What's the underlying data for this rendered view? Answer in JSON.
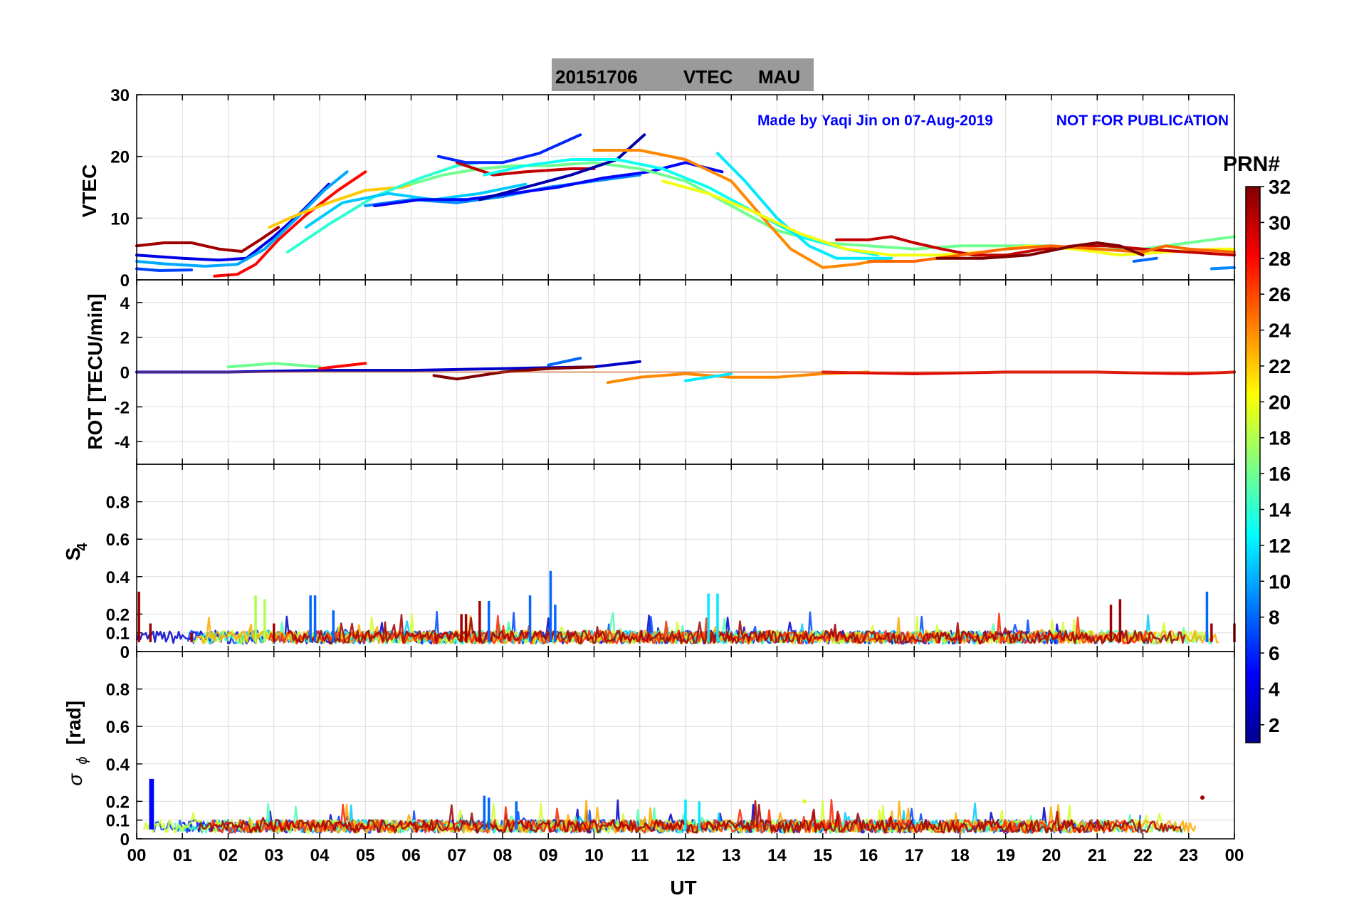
{
  "title": {
    "date": "20151706",
    "param": "VTEC",
    "station": "MAU"
  },
  "credit": "Made by Yaqi Jin on 07-Aug-2019",
  "notice": "NOT FOR PUBLICATION",
  "colors": {
    "title_bg": "#9a9a9a",
    "credit": "#0000ff",
    "grid": "#dcdcdc",
    "axis": "#000000"
  },
  "colorbar": {
    "label": "PRN#",
    "range": [
      1,
      32
    ],
    "ticks": [
      "2",
      "4",
      "6",
      "8",
      "10",
      "12",
      "14",
      "16",
      "18",
      "20",
      "22",
      "24",
      "26",
      "28",
      "30",
      "32"
    ]
  },
  "chart_data": {
    "type": "line",
    "x_label": "UT",
    "x_range": [
      0,
      24
    ],
    "x_ticks": [
      "00",
      "01",
      "02",
      "03",
      "04",
      "05",
      "06",
      "07",
      "08",
      "09",
      "10",
      "11",
      "12",
      "13",
      "14",
      "15",
      "16",
      "17",
      "18",
      "19",
      "20",
      "21",
      "22",
      "23",
      "00"
    ],
    "panels": [
      {
        "id": "vtec",
        "ylabel": "VTEC",
        "ylim": [
          0,
          30
        ],
        "yticks": [
          "0",
          "10",
          "20",
          "30"
        ],
        "series": [
          {
            "prn": 31,
            "x": [
              0,
              0.6,
              1.2,
              1.8,
              2.3,
              2.7,
              3.1
            ],
            "y": [
              5.5,
              6,
              6,
              5,
              4.6,
              6.5,
              8.5
            ]
          },
          {
            "prn": 4,
            "x": [
              0,
              1,
              1.8,
              2.4,
              3,
              3.6,
              4.2
            ],
            "y": [
              4,
              3.5,
              3.2,
              3.5,
              7,
              11,
              15.5
            ]
          },
          {
            "prn": 10,
            "x": [
              0,
              0.6,
              1.5,
              2.2,
              2.8,
              3.5,
              4.1,
              4.6
            ],
            "y": [
              3,
              2.6,
              2.2,
              2.5,
              5,
              10,
              14.5,
              17.5
            ]
          },
          {
            "prn": 28,
            "x": [
              1.7,
              2.2,
              2.6,
              3.1,
              3.7,
              4.4,
              5
            ],
            "y": [
              0.6,
              0.9,
              2.5,
              6.5,
              10.5,
              14.5,
              17.5
            ]
          },
          {
            "prn": 7,
            "x": [
              0,
              0.5,
              1.2
            ],
            "y": [
              1.8,
              1.5,
              1.6
            ]
          },
          {
            "prn": 22,
            "x": [
              2.9,
              3.5,
              4.2,
              5,
              5.8,
              6
            ],
            "y": [
              8.5,
              10.5,
              12.5,
              14.5,
              15,
              15.5
            ]
          },
          {
            "prn": 14,
            "x": [
              3.3,
              4.2,
              5.2,
              6.2,
              7,
              7.5
            ],
            "y": [
              4.5,
              9,
              13.5,
              16.5,
              18.5,
              19
            ]
          },
          {
            "prn": 11,
            "x": [
              3.7,
              4.5,
              5.5,
              6.5,
              7.5,
              8.5
            ],
            "y": [
              8.5,
              12.5,
              14,
              13,
              14,
              15.5
            ]
          },
          {
            "prn": 9,
            "x": [
              5,
              6,
              7,
              8,
              9,
              10,
              11
            ],
            "y": [
              12,
              13,
              12.5,
              13.5,
              15,
              16,
              17
            ]
          },
          {
            "prn": 5,
            "x": [
              5.2,
              6.2,
              7.2,
              8.2,
              9.2,
              10.2,
              11.2,
              12,
              12.8
            ],
            "y": [
              12,
              13,
              13,
              14,
              15,
              16.5,
              17.5,
              19,
              17.5
            ]
          },
          {
            "prn": 16,
            "x": [
              6,
              6.7,
              7.5,
              8.3,
              9,
              10,
              11,
              12,
              13,
              14,
              15,
              16,
              17,
              18,
              19,
              20,
              21,
              22,
              23,
              24
            ],
            "y": [
              15.5,
              17,
              18,
              18.5,
              18.5,
              19,
              18,
              16,
              12,
              8,
              6,
              5.5,
              5,
              5.5,
              5.5,
              5.5,
              5,
              5,
              6,
              7
            ]
          },
          {
            "prn": 30,
            "x": [
              7,
              7.8,
              8.5,
              9.5,
              10
            ],
            "y": [
              19,
              17,
              17.5,
              18,
              18
            ]
          },
          {
            "prn": 6,
            "x": [
              6.6,
              7.2,
              8,
              8.8,
              9.7
            ],
            "y": [
              20,
              19,
              19,
              20.5,
              23.5
            ]
          },
          {
            "prn": 2,
            "x": [
              7.5,
              8.5,
              9.5,
              10.5,
              11.1
            ],
            "y": [
              13,
              15,
              17,
              19.5,
              23.5
            ]
          },
          {
            "prn": 13,
            "x": [
              7.6,
              8.5,
              9.5,
              10.5,
              11.5,
              12.5,
              13.5,
              14.5,
              15.5,
              16.2
            ],
            "y": [
              17,
              18.5,
              19.5,
              19.5,
              18,
              15,
              11,
              7,
              5,
              4
            ]
          },
          {
            "prn": 24,
            "x": [
              10,
              11,
              12,
              13,
              13.7,
              14.3,
              15,
              15.7,
              16.5
            ],
            "y": [
              21,
              21,
              19.5,
              16,
              10,
              5,
              2,
              2.5,
              3.5
            ]
          },
          {
            "prn": 12,
            "x": [
              12.7,
              13.3,
              14,
              14.7,
              15.3,
              16,
              16.5
            ],
            "y": [
              20.5,
              16,
              10,
              5.5,
              3.5,
              3.5,
              3.5
            ]
          },
          {
            "prn": 20,
            "x": [
              11.5,
              12.5,
              13.5,
              14.5,
              15.5,
              16.5,
              17.5,
              18.5,
              19.5,
              20.5,
              21.5,
              22.5,
              23.5,
              24
            ],
            "y": [
              16,
              14,
              11,
              7.5,
              5,
              4,
              4,
              4.5,
              5.5,
              5,
              4,
              4.5,
              5,
              5
            ]
          },
          {
            "prn": 30,
            "x": [
              15.3,
              16,
              16.5,
              17,
              17.6,
              18.3,
              19,
              19.8,
              20.5,
              21.2,
              22,
              23,
              24
            ],
            "y": [
              6.5,
              6.5,
              7,
              6,
              5,
              4,
              4,
              5,
              5.5,
              5.5,
              5,
              4.5,
              4
            ]
          },
          {
            "prn": 25,
            "x": [
              16,
              17,
              18,
              19,
              20,
              21,
              22,
              22.5,
              23,
              24
            ],
            "y": [
              3,
              3,
              4,
              5,
              5.5,
              5,
              4.5,
              5.5,
              5,
              4.5
            ]
          },
          {
            "prn": 32,
            "x": [
              17.5,
              18.5,
              19.5,
              20.5,
              21,
              21.5,
              22
            ],
            "y": [
              3.5,
              3.5,
              4,
              5.5,
              6,
              5.5,
              4
            ]
          },
          {
            "prn": 8,
            "x": [
              21.8,
              22.3
            ],
            "y": [
              3,
              3.5
            ]
          },
          {
            "prn": 9,
            "x": [
              23.5,
              24
            ],
            "y": [
              1.8,
              2
            ]
          }
        ]
      },
      {
        "id": "rot",
        "ylabel": "ROT [TECU/min]",
        "ylim": [
          -5.3,
          5.3
        ],
        "yticks": [
          "-4",
          "-2",
          "0",
          "2",
          "4"
        ],
        "series": [
          {
            "prn": 3,
            "x": [
              0,
              2,
              4,
              6,
              8,
              10,
              11
            ],
            "y": [
              0,
              0,
              0.1,
              0.1,
              0.2,
              0.3,
              0.6
            ]
          },
          {
            "prn": 8,
            "x": [
              9,
              9.7
            ],
            "y": [
              0.4,
              0.8
            ]
          },
          {
            "prn": 16,
            "x": [
              2,
              3,
              4
            ],
            "y": [
              0.3,
              0.5,
              0.3
            ]
          },
          {
            "prn": 28,
            "x": [
              4,
              5
            ],
            "y": [
              0.2,
              0.5
            ]
          },
          {
            "prn": 32,
            "x": [
              6.5,
              7,
              8,
              9,
              10
            ],
            "y": [
              -0.2,
              -0.4,
              0,
              0.2,
              0.3
            ]
          },
          {
            "prn": 24,
            "x": [
              10.3,
              11,
              12,
              13,
              14,
              15,
              16
            ],
            "y": [
              -0.6,
              -0.3,
              -0.1,
              -0.3,
              -0.3,
              -0.1,
              0
            ]
          },
          {
            "prn": 12,
            "x": [
              12,
              12.5,
              13
            ],
            "y": [
              -0.5,
              -0.3,
              -0.1
            ]
          },
          {
            "prn": 29,
            "x": [
              15,
              17,
              19,
              21,
              23,
              24
            ],
            "y": [
              0,
              -0.1,
              0,
              0,
              -0.1,
              0
            ]
          }
        ]
      },
      {
        "id": "s4",
        "ylabel": "S4",
        "ylim": [
          0,
          1
        ],
        "yticks": [
          "0",
          "0.1",
          "0.2",
          "0.4",
          "0.6",
          "0.8"
        ],
        "series": [
          {
            "prn": 31,
            "x": [
              0.05,
              0.3,
              1.2,
              2.6,
              3,
              7.1,
              7.2,
              7.5,
              21.3,
              21.5,
              23.5,
              24
            ],
            "y": [
              0.32,
              0.15,
              0.1,
              0.12,
              0.15,
              0.2,
              0.2,
              0.27,
              0.25,
              0.28,
              0.15,
              0.15
            ]
          },
          {
            "prn": 8,
            "x": [
              3.8,
              3.9,
              4.3,
              7.7,
              8.6,
              9.05,
              9.15,
              23.4
            ],
            "y": [
              0.3,
              0.3,
              0.22,
              0.27,
              0.3,
              0.43,
              0.25,
              0.32
            ]
          },
          {
            "prn": 12,
            "x": [
              12.5,
              12.7
            ],
            "y": [
              0.31,
              0.31
            ]
          },
          {
            "prn": 18,
            "x": [
              2.6,
              2.8
            ],
            "y": [
              0.3,
              0.28
            ]
          }
        ]
      },
      {
        "id": "sigphi",
        "ylabel": "σϕ [rad]",
        "ylim": [
          0,
          1
        ],
        "yticks": [
          "0",
          "0.1",
          "0.2",
          "0.4",
          "0.6",
          "0.8"
        ],
        "series": [
          {
            "prn": 5,
            "x": [
              0.3,
              0.35
            ],
            "y": [
              0.32,
              0.32
            ]
          },
          {
            "prn": 8,
            "x": [
              7.6,
              7.7,
              8.3
            ],
            "y": [
              0.23,
              0.22,
              0.2
            ]
          },
          {
            "prn": 31,
            "x": [
              23.3
            ],
            "y": [
              0.22
            ]
          },
          {
            "prn": 12,
            "x": [
              12,
              12.3
            ],
            "y": [
              0.21,
              0.2
            ]
          },
          {
            "prn": 19,
            "x": [
              14.6
            ],
            "y": [
              0.2
            ]
          }
        ]
      }
    ]
  }
}
